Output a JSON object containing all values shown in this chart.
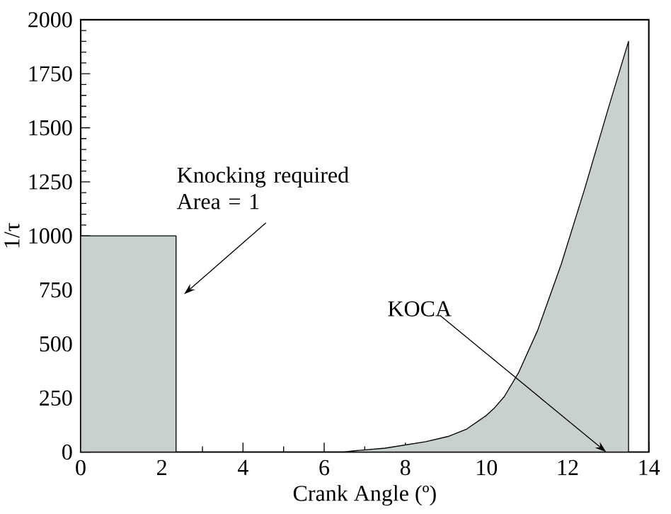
{
  "chart_data": {
    "type": "area",
    "xlabel": "Crank Angle (º)",
    "ylabel": "1/τ",
    "xlim": [
      0,
      14
    ],
    "xticks": [
      0,
      2,
      4,
      6,
      8,
      10,
      12,
      14
    ],
    "ylim": [
      0,
      2000
    ],
    "yticks": [
      0,
      250,
      500,
      750,
      1000,
      1250,
      1500,
      1750,
      2000
    ],
    "grid": false,
    "series": [
      {
        "color": "#c8d0d0",
        "x": [
          0,
          2.35
        ],
        "values": [
          1000,
          1000
        ]
      },
      {
        "color": "#c8d0d0",
        "x": [
          6.5,
          6.7,
          7.5,
          8,
          8.5,
          9.05,
          9.5,
          10,
          10.2,
          10.44,
          10.79,
          11.26,
          11.84,
          12.42,
          13.0,
          13.5
        ],
        "values": [
          0,
          5,
          18,
          33,
          48,
          72,
          105,
          170,
          205,
          257,
          367,
          563,
          868,
          1218,
          1589,
          1900
        ]
      }
    ],
    "annotations": [
      "Knocking required Area = 1",
      {
        "text": "KOCA",
        "x": 12.95,
        "y": 0
      }
    ]
  }
}
